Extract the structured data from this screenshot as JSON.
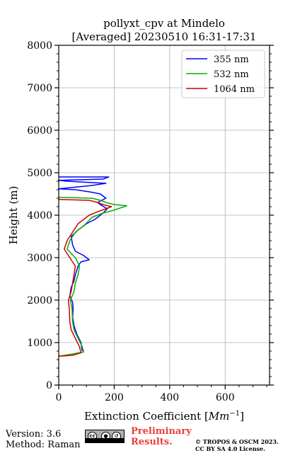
{
  "chart_data": {
    "type": "line",
    "title_line1": "pollyxt_cpv at Mindelo",
    "title_line2": "[Averaged] 20230510 16:31-17:31",
    "xlabel": "Extinction Coefficient [",
    "xlabel_unit": "Mm",
    "xlabel_exp": "−1",
    "xlabel_end": "]",
    "ylabel": "Height (m)",
    "xlim": [
      0,
      760
    ],
    "ylim": [
      0,
      8000
    ],
    "xticks": [
      0,
      200,
      400,
      600
    ],
    "yticks": [
      0,
      1000,
      2000,
      3000,
      4000,
      5000,
      6000,
      7000,
      8000
    ],
    "grid": true,
    "legend": "top-right",
    "series": [
      {
        "name": "355 nm",
        "color": "#0000ff",
        "points": [
          [
            85,
            800
          ],
          [
            80,
            1000
          ],
          [
            65,
            1200
          ],
          [
            55,
            1400
          ],
          [
            50,
            1600
          ],
          [
            52,
            1800
          ],
          [
            50,
            1950
          ],
          [
            40,
            2100
          ],
          [
            45,
            2300
          ],
          [
            55,
            2450
          ],
          [
            60,
            2600
          ],
          [
            70,
            2800
          ],
          [
            80,
            2900
          ],
          [
            110,
            2950
          ],
          [
            90,
            3050
          ],
          [
            60,
            3150
          ],
          [
            50,
            3300
          ],
          [
            45,
            3500
          ],
          [
            70,
            3650
          ],
          [
            100,
            3800
          ],
          [
            130,
            3900
          ],
          [
            160,
            4050
          ],
          [
            175,
            4150
          ],
          [
            150,
            4250
          ],
          [
            140,
            4300
          ],
          [
            170,
            4400
          ],
          [
            150,
            4500
          ],
          [
            110,
            4550
          ],
          [
            60,
            4600
          ],
          [
            0,
            4620
          ],
          [
            120,
            4700
          ],
          [
            170,
            4750
          ],
          [
            30,
            4800
          ],
          [
            0,
            4820
          ],
          [
            160,
            4850
          ],
          [
            180,
            4900
          ],
          [
            0,
            4900
          ]
        ]
      },
      {
        "name": "532 nm",
        "color": "#00b000",
        "points": [
          [
            0,
            680
          ],
          [
            40,
            720
          ],
          [
            90,
            780
          ],
          [
            85,
            900
          ],
          [
            70,
            1100
          ],
          [
            55,
            1300
          ],
          [
            50,
            1500
          ],
          [
            48,
            1800
          ],
          [
            42,
            2000
          ],
          [
            55,
            2200
          ],
          [
            60,
            2400
          ],
          [
            70,
            2600
          ],
          [
            75,
            2800
          ],
          [
            60,
            3000
          ],
          [
            30,
            3200
          ],
          [
            40,
            3400
          ],
          [
            60,
            3600
          ],
          [
            90,
            3750
          ],
          [
            120,
            3950
          ],
          [
            160,
            4050
          ],
          [
            190,
            4100
          ],
          [
            245,
            4220
          ],
          [
            200,
            4250
          ],
          [
            170,
            4300
          ],
          [
            150,
            4350
          ],
          [
            120,
            4400
          ],
          [
            0,
            4420
          ]
        ]
      },
      {
        "name": "1064 nm",
        "color": "#d00000",
        "points": [
          [
            0,
            680
          ],
          [
            50,
            700
          ],
          [
            80,
            760
          ],
          [
            75,
            900
          ],
          [
            60,
            1100
          ],
          [
            45,
            1300
          ],
          [
            40,
            1500
          ],
          [
            38,
            1800
          ],
          [
            35,
            2000
          ],
          [
            45,
            2200
          ],
          [
            50,
            2400
          ],
          [
            55,
            2600
          ],
          [
            60,
            2800
          ],
          [
            40,
            3000
          ],
          [
            20,
            3200
          ],
          [
            30,
            3400
          ],
          [
            50,
            3600
          ],
          [
            70,
            3800
          ],
          [
            90,
            3900
          ],
          [
            110,
            4000
          ],
          [
            140,
            4080
          ],
          [
            170,
            4150
          ],
          [
            190,
            4200
          ],
          [
            160,
            4250
          ],
          [
            140,
            4300
          ],
          [
            110,
            4350
          ],
          [
            0,
            4370
          ]
        ]
      }
    ]
  },
  "footer": {
    "version": "Version: 3.6",
    "method": "Method: Raman",
    "preliminary_line1": "Preliminary",
    "preliminary_line2": "Results.",
    "copyright_line1": "© TROPOS & OSCM 2023.",
    "copyright_line2": "CC BY SA 4.0 License.",
    "license_icon": "cc-by-sa-icon",
    "license_text": "BY SA"
  }
}
